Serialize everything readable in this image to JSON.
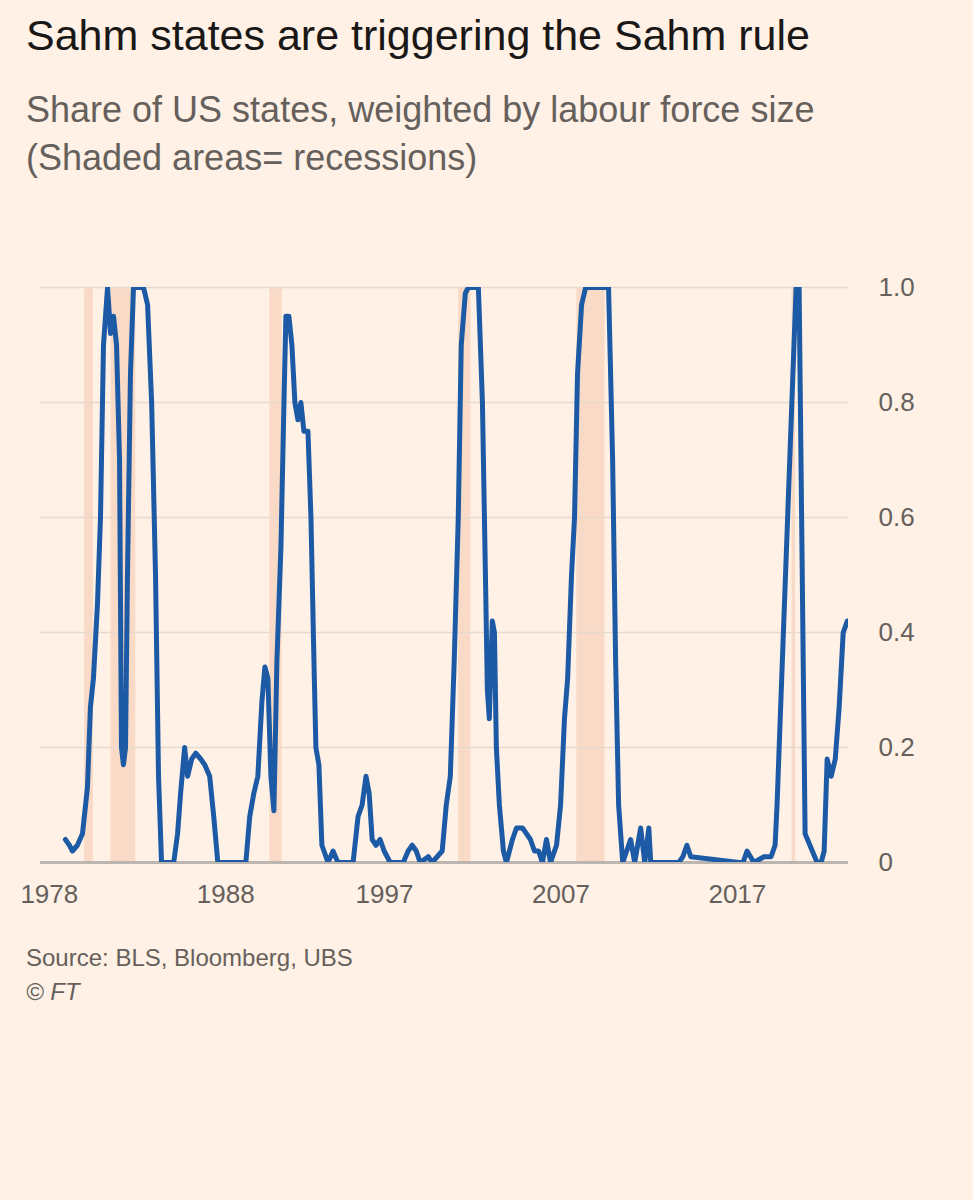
{
  "chart_data": {
    "type": "line",
    "title": "Sahm states are triggering the Sahm rule",
    "subtitle": "Share of US states, weighted by labour force size (Shaded areas= recessions)",
    "source": "Source: BLS, Bloomberg, UBS",
    "credit": "© FT",
    "color": "#1c5aa6",
    "grid": true,
    "xlim": [
      1977.5,
      2023.3
    ],
    "xticks": [
      1978,
      1988,
      1997,
      2007,
      2017
    ],
    "ylim": [
      0,
      1
    ],
    "yticks": [
      0,
      0.2,
      0.4,
      0.6,
      0.8,
      {
        "value": 1,
        "label": "1.0"
      }
    ],
    "recessions": [
      [
        1980.0,
        1980.5
      ],
      [
        1981.5,
        1982.9
      ],
      [
        1990.5,
        1991.2
      ],
      [
        2001.2,
        2001.9
      ],
      [
        2007.9,
        2009.5
      ],
      [
        2020.1,
        2020.3
      ]
    ],
    "x": [
      1978.91,
      1979.14,
      1979.31,
      1979.59,
      1979.88,
      1980.16,
      1980.33,
      1980.5,
      1980.73,
      1980.9,
      1981.07,
      1981.3,
      1981.47,
      1981.64,
      1981.81,
      1981.98,
      1982.09,
      1982.2,
      1982.32,
      1982.43,
      1982.6,
      1982.77,
      1983.34,
      1983.57,
      1983.8,
      1984.02,
      1984.19,
      1984.36,
      1985.05,
      1985.27,
      1985.44,
      1985.67,
      1985.84,
      1986.07,
      1986.3,
      1986.58,
      1986.81,
      1987.09,
      1987.32,
      1987.55,
      1989.14,
      1989.36,
      1989.59,
      1989.82,
      1990.05,
      1990.22,
      1990.39,
      1990.56,
      1990.73,
      1990.9,
      1991.13,
      1991.3,
      1991.41,
      1991.58,
      1991.75,
      1991.92,
      1992.09,
      1992.26,
      1992.43,
      1992.66,
      1992.83,
      1993.0,
      1993.11,
      1993.28,
      1993.45,
      1993.8,
      1994.08,
      1994.36,
      1995.22,
      1995.5,
      1995.73,
      1995.95,
      1996.13,
      1996.3,
      1996.52,
      1996.75,
      1996.98,
      1997.32,
      1998.06,
      1998.34,
      1998.57,
      1998.8,
      1999.02,
      1999.48,
      1999.7,
      2000.27,
      2000.5,
      2000.73,
      2000.95,
      2001.18,
      2001.35,
      2001.58,
      2001.75,
      2002.32,
      2002.55,
      2002.72,
      2002.83,
      2002.94,
      2003.11,
      2003.23,
      2003.34,
      2003.51,
      2003.74,
      2003.91,
      2004.25,
      2004.48,
      2004.82,
      2005.05,
      2005.27,
      2005.5,
      2005.73,
      2005.95,
      2006.18,
      2006.41,
      2006.75,
      2006.98,
      2007.2,
      2007.38,
      2007.6,
      2007.77,
      2007.94,
      2008.17,
      2008.4,
      2009.7,
      2009.93,
      2010.1,
      2010.27,
      2010.5,
      2010.95,
      2011.18,
      2011.52,
      2011.75,
      2011.98,
      2012.09,
      2013.68,
      2013.91,
      2014.14,
      2014.36,
      2017.09,
      2017.32,
      2017.55,
      2017.94,
      2018.51,
      2018.91,
      2019.14,
      2019.25,
      2020.33,
      2020.5,
      2020.84,
      2021.52,
      2021.75,
      2021.92,
      2022.09,
      2022.32,
      2022.55,
      2022.77,
      2023.0,
      2023.23
    ],
    "values": [
      0.04,
      0.03,
      0.02,
      0.03,
      0.05,
      0.13,
      0.27,
      0.32,
      0.45,
      0.6,
      0.9,
      1.0,
      0.92,
      0.95,
      0.9,
      0.7,
      0.2,
      0.17,
      0.2,
      0.5,
      0.85,
      1.0,
      1.0,
      0.97,
      0.8,
      0.5,
      0.15,
      0.0,
      0.0,
      0.05,
      0.12,
      0.2,
      0.15,
      0.18,
      0.19,
      0.18,
      0.17,
      0.15,
      0.08,
      0.0,
      0.0,
      0.08,
      0.12,
      0.15,
      0.28,
      0.34,
      0.32,
      0.15,
      0.09,
      0.35,
      0.55,
      0.8,
      0.95,
      0.95,
      0.9,
      0.8,
      0.77,
      0.8,
      0.75,
      0.75,
      0.6,
      0.35,
      0.2,
      0.17,
      0.03,
      0.0,
      0.02,
      0.0,
      0.0,
      0.08,
      0.1,
      0.15,
      0.12,
      0.04,
      0.03,
      0.04,
      0.02,
      0.0,
      0.0,
      0.02,
      0.03,
      0.02,
      0.0,
      0.01,
      0.0,
      0.02,
      0.1,
      0.15,
      0.35,
      0.6,
      0.9,
      0.99,
      1.0,
      1.0,
      0.8,
      0.5,
      0.3,
      0.25,
      0.42,
      0.4,
      0.2,
      0.1,
      0.02,
      0.0,
      0.04,
      0.06,
      0.06,
      0.05,
      0.04,
      0.02,
      0.02,
      0.0,
      0.04,
      0.0,
      0.03,
      0.1,
      0.25,
      0.32,
      0.5,
      0.6,
      0.85,
      0.97,
      1.0,
      1.0,
      0.7,
      0.35,
      0.1,
      0.0,
      0.04,
      0.0,
      0.06,
      0.0,
      0.06,
      0.0,
      0.0,
      0.01,
      0.03,
      0.01,
      0.0,
      0.0,
      0.02,
      0.0,
      0.01,
      0.01,
      0.03,
      0.1,
      1.0,
      1.0,
      0.05,
      0.0,
      0.0,
      0.02,
      0.18,
      0.15,
      0.18,
      0.27,
      0.4,
      0.42
    ]
  }
}
